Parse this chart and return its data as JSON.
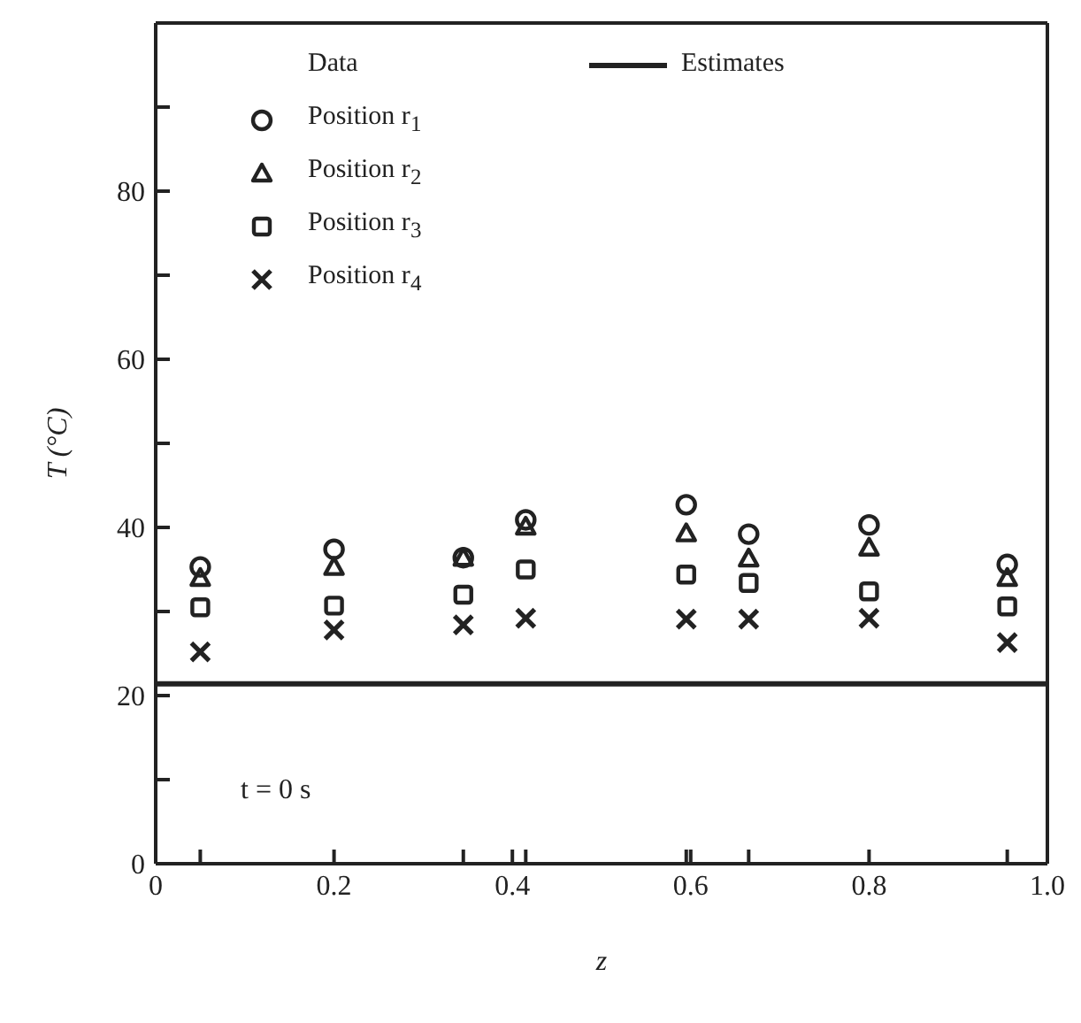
{
  "chart_data": {
    "type": "scatter",
    "xlabel": "z",
    "ylabel": "T (°C)",
    "legend_title": "Data",
    "legend": "top",
    "xlim": [
      0,
      1
    ],
    "ylim": [
      0,
      100
    ],
    "xticks": [
      0,
      {
        "value": 0.05,
        "label": null
      },
      {
        "value": 0.2,
        "label": "0.2"
      },
      {
        "value": 0.345,
        "label": null
      },
      {
        "value": 0.4,
        "label": "0.4"
      },
      {
        "value": 0.415,
        "label": null
      },
      {
        "value": 0.595,
        "label": null
      },
      {
        "value": 0.6,
        "label": "0.6"
      },
      {
        "value": 0.665,
        "label": null
      },
      {
        "value": 0.8,
        "label": "0.8"
      },
      {
        "value": 0.955,
        "label": null
      },
      {
        "value": 1,
        "label": "1.0"
      }
    ],
    "yticks": [
      0,
      {
        "value": 10,
        "label": null
      },
      20,
      {
        "value": 30,
        "label": null
      },
      40,
      {
        "value": 50,
        "label": null
      },
      60,
      {
        "value": 70,
        "label": null
      },
      80,
      {
        "value": 90,
        "label": null
      }
    ],
    "x": [
      0.05,
      0.2,
      0.345,
      0.415,
      0.595,
      0.665,
      0.8,
      0.955
    ],
    "series": [
      {
        "name": "Position r$_{1}$",
        "color": "#222222",
        "marker": "circle",
        "values": [
          35.3,
          37.4,
          36.4,
          40.9,
          42.7,
          39.2,
          40.3,
          35.6
        ]
      },
      {
        "name": "Position r$_{2}$",
        "color": "#222222",
        "marker": "triangle",
        "values": [
          34.0,
          35.3,
          36.4,
          40.1,
          39.3,
          36.3,
          37.6,
          34.0
        ]
      },
      {
        "name": "Position r$_{3}$",
        "color": "#222222",
        "marker": "square",
        "values": [
          30.5,
          30.7,
          32.0,
          35.0,
          34.4,
          33.4,
          32.4,
          30.6
        ]
      },
      {
        "name": "Position r$_{4}$",
        "color": "#222222",
        "marker": "cross",
        "values": [
          25.2,
          27.8,
          28.4,
          29.2,
          29.1,
          29.1,
          29.2,
          26.3
        ]
      },
      {
        "name": "Estimates",
        "type": "line",
        "color": "#222222",
        "line_style": "solid",
        "x": [
          0,
          1
        ],
        "values": [
          21.4,
          21.4
        ]
      }
    ],
    "annotations": [
      "t = 0 s"
    ]
  }
}
